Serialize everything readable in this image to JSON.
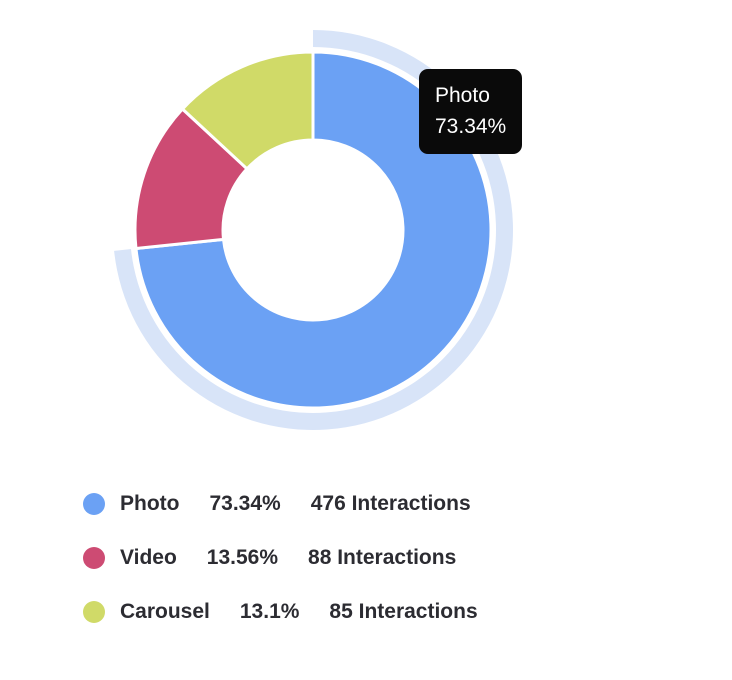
{
  "chart_data": {
    "type": "pie",
    "variant": "donut",
    "title": "",
    "start_angle_deg": 0,
    "grid": false,
    "legend_position": "bottom-left",
    "slice_border_color": "#ffffff",
    "highlighted_slice": "Photo",
    "highlight_halo_color": "#d8e4f8",
    "slices": [
      {
        "label": "Photo",
        "percent": 73.34,
        "percent_label": "73.34%",
        "interactions": 476,
        "interactions_label": "476 Interactions",
        "color": "#6ba1f4"
      },
      {
        "label": "Video",
        "percent": 13.56,
        "percent_label": "13.56%",
        "interactions": 88,
        "interactions_label": "88 Interactions",
        "color": "#cd4b73"
      },
      {
        "label": "Carousel",
        "percent": 13.1,
        "percent_label": "13.1%",
        "interactions": 85,
        "interactions_label": "85 Interactions",
        "color": "#d0da68"
      }
    ]
  },
  "tooltip": {
    "label": "Photo",
    "value": "73.34%",
    "bg_color": "#0a0a0a",
    "text_color": "#ffffff"
  }
}
